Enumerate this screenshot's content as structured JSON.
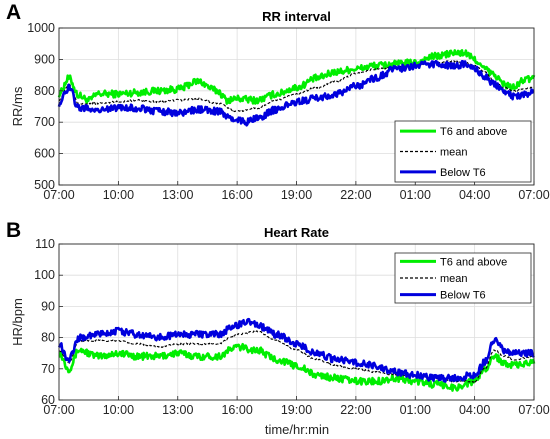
{
  "figure": {
    "panel_labels": [
      "A",
      "B"
    ],
    "shared_xlabel": "time/hr:min"
  },
  "chart_data": [
    {
      "type": "line",
      "panel": "A",
      "title": "RR interval",
      "xlabel": "",
      "ylabel": "RR/ms",
      "x_tick_labels": [
        "07:00",
        "10:00",
        "13:00",
        "16:00",
        "19:00",
        "22:00",
        "01:00",
        "04:00",
        "07:00"
      ],
      "x_tick_hours": [
        0,
        3,
        6,
        9,
        12,
        15,
        18,
        21,
        24
      ],
      "xlim_hours": [
        0,
        24
      ],
      "ylim": [
        500,
        1000
      ],
      "y_ticks": [
        500,
        600,
        700,
        800,
        900,
        1000
      ],
      "grid": true,
      "legend_position": "bottom-right",
      "series": [
        {
          "name": "T6 and above",
          "color": "#00ee00",
          "style": "solid",
          "x_hours": [
            0,
            0.5,
            1,
            1.5,
            2,
            3,
            4,
            5,
            6,
            7,
            8,
            8.5,
            9,
            10,
            11,
            12,
            13,
            14,
            15,
            16,
            17,
            18,
            19,
            20,
            20.5,
            21,
            21.5,
            22,
            22.5,
            23,
            23.5,
            24
          ],
          "values": [
            790,
            840,
            785,
            770,
            790,
            790,
            795,
            800,
            805,
            830,
            800,
            770,
            775,
            770,
            790,
            810,
            840,
            860,
            870,
            880,
            885,
            890,
            910,
            920,
            920,
            900,
            870,
            850,
            820,
            810,
            835,
            840
          ]
        },
        {
          "name": "mean",
          "color": "#000000",
          "style": "dashed",
          "x_hours": [
            0,
            0.5,
            1,
            2,
            3,
            4,
            5,
            6,
            7,
            8,
            9,
            10,
            11,
            12,
            13,
            14,
            15,
            16,
            17,
            18,
            19,
            20,
            20.5,
            21,
            21.5,
            22,
            22.5,
            23,
            23.5,
            24
          ],
          "values": [
            770,
            820,
            760,
            760,
            765,
            770,
            765,
            770,
            775,
            760,
            735,
            745,
            770,
            790,
            810,
            830,
            855,
            870,
            875,
            880,
            890,
            895,
            890,
            880,
            860,
            830,
            810,
            800,
            805,
            810
          ]
        },
        {
          "name": "Below T6",
          "color": "#0000dd",
          "style": "solid",
          "x_hours": [
            0,
            0.5,
            1,
            2,
            3,
            4,
            5,
            6,
            7,
            8,
            9,
            9.5,
            10,
            11,
            12,
            13,
            14,
            15,
            16,
            17,
            18,
            19,
            20,
            20.5,
            21,
            21.5,
            22,
            22.5,
            23,
            23.5,
            24
          ],
          "values": [
            760,
            810,
            745,
            740,
            745,
            745,
            735,
            730,
            740,
            735,
            705,
            700,
            715,
            740,
            765,
            775,
            790,
            815,
            840,
            870,
            880,
            885,
            880,
            885,
            870,
            845,
            820,
            800,
            780,
            790,
            795
          ]
        }
      ]
    },
    {
      "type": "line",
      "panel": "B",
      "title": "Heart Rate",
      "xlabel": "time/hr:min",
      "ylabel": "HR/bpm",
      "x_tick_labels": [
        "07:00",
        "10:00",
        "13:00",
        "16:00",
        "19:00",
        "22:00",
        "01:00",
        "04:00",
        "07:00"
      ],
      "x_tick_hours": [
        0,
        3,
        6,
        9,
        12,
        15,
        18,
        21,
        24
      ],
      "xlim_hours": [
        0,
        24
      ],
      "ylim": [
        60,
        110
      ],
      "y_ticks": [
        60,
        70,
        80,
        90,
        100,
        110
      ],
      "grid": true,
      "legend_position": "top-right",
      "series": [
        {
          "name": "T6 and above",
          "color": "#00ee00",
          "style": "solid",
          "x_hours": [
            0,
            0.5,
            1,
            2,
            3,
            4,
            5,
            6,
            7,
            8,
            9,
            10,
            11,
            12,
            13,
            14,
            15,
            16,
            17,
            18,
            19,
            20,
            21,
            21.5,
            22,
            22.5,
            23,
            24
          ],
          "values": [
            75,
            70,
            76,
            74,
            75,
            74,
            74,
            75,
            74,
            74,
            77,
            76,
            73,
            71,
            68,
            67,
            66,
            66,
            67,
            66,
            65,
            64,
            66,
            70,
            74,
            72,
            71,
            72
          ]
        },
        {
          "name": "mean",
          "color": "#000000",
          "style": "dashed",
          "x_hours": [
            0,
            0.5,
            1,
            2,
            3,
            4,
            5,
            6,
            7,
            8,
            9,
            10,
            11,
            12,
            13,
            14,
            15,
            16,
            17,
            18,
            19,
            20,
            21,
            21.5,
            22,
            22.5,
            23,
            24
          ],
          "values": [
            76,
            72,
            79,
            79,
            79,
            78,
            77,
            78,
            78,
            78,
            81,
            82,
            79,
            76,
            73,
            71,
            70,
            69,
            68,
            68,
            67,
            66,
            66,
            70,
            76,
            74,
            73,
            74
          ]
        },
        {
          "name": "Below T6",
          "color": "#0000dd",
          "style": "solid",
          "x_hours": [
            0,
            0.5,
            1,
            2,
            3,
            4,
            5,
            6,
            7,
            8,
            9,
            9.5,
            10,
            11,
            12,
            13,
            14,
            15,
            16,
            17,
            18,
            19,
            20,
            21,
            21.5,
            22,
            22.5,
            23,
            24
          ],
          "values": [
            78,
            73,
            80,
            81,
            82,
            81,
            80,
            81,
            81,
            81,
            84,
            85,
            84,
            81,
            78,
            75,
            73,
            72,
            71,
            69,
            68,
            67,
            67,
            68,
            72,
            79,
            76,
            75,
            75
          ]
        }
      ]
    }
  ]
}
